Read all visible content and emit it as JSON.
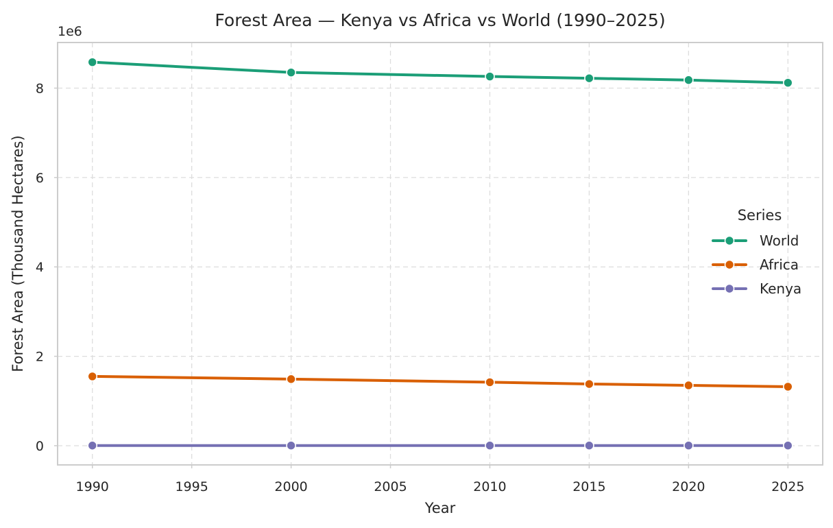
{
  "chart_data": {
    "type": "line",
    "title": "Forest Area — Kenya vs Africa vs World (1990–2025)",
    "xlabel": "Year",
    "ylabel": "Forest Area (Thousand Hectares)",
    "y_offset_label": "1e6",
    "x": [
      1990,
      2000,
      2010,
      2015,
      2020,
      2025
    ],
    "xlim": [
      1988.25,
      2026.75
    ],
    "ylim": [
      -0.43,
      9.02
    ],
    "xticks": [
      1990,
      1995,
      2000,
      2005,
      2010,
      2015,
      2020,
      2025
    ],
    "yticks": [
      0,
      2,
      4,
      6,
      8
    ],
    "grid": true,
    "legend": {
      "title": "Series",
      "placement": "center-right"
    },
    "series": [
      {
        "name": "World",
        "color": "#1b9e77",
        "values": [
          8.58,
          8.35,
          8.26,
          8.22,
          8.18,
          8.12
        ]
      },
      {
        "name": "Africa",
        "color": "#d95f02",
        "values": [
          1.55,
          1.49,
          1.42,
          1.38,
          1.35,
          1.32
        ]
      },
      {
        "name": "Kenya",
        "color": "#7570b3",
        "values": [
          0.0035,
          0.0036,
          0.0037,
          0.0037,
          0.0038,
          0.0038
        ]
      }
    ]
  }
}
